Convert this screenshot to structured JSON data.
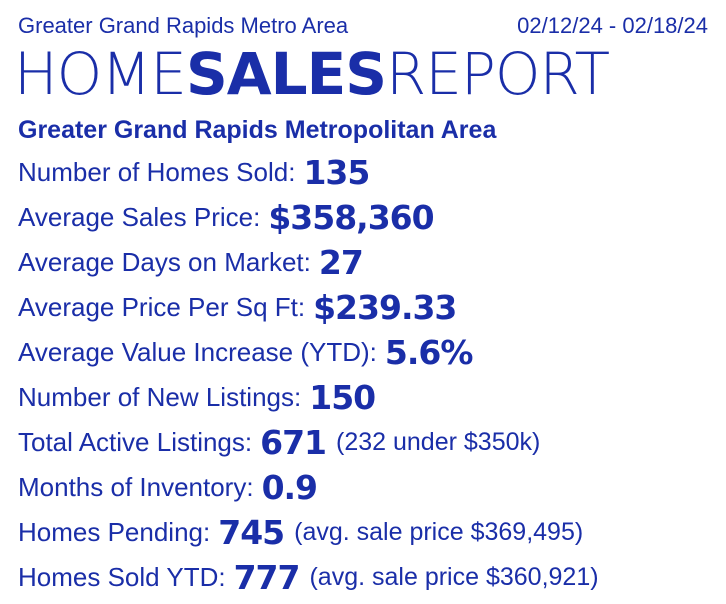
{
  "header": {
    "region": "Greater Grand Rapids Metro Area",
    "date_range": "02/12/24 - 02/18/24",
    "title_part1": "HOME",
    "title_part2": "SALES",
    "title_part3": "REPORT"
  },
  "area_heading": "Greater Grand Rapids Metropolitan Area",
  "stats": [
    {
      "label": "Number of Homes Sold:",
      "value": "135",
      "note": ""
    },
    {
      "label": "Average Sales Price:",
      "value": "$358,360",
      "note": ""
    },
    {
      "label": "Average Days on Market:",
      "value": "27",
      "note": ""
    },
    {
      "label": "Average Price Per Sq Ft:",
      "value": "$239.33",
      "note": ""
    },
    {
      "label": "Average Value Increase (YTD):",
      "value": "5.6%",
      "note": ""
    },
    {
      "label": "Number of New Listings:",
      "value": "150",
      "note": ""
    },
    {
      "label": "Total Active Listings:",
      "value": "671",
      "note": "(232 under $350k)"
    },
    {
      "label": "Months of Inventory:",
      "value": "0.9",
      "note": ""
    },
    {
      "label": "Homes Pending:",
      "value": "745",
      "note": "(avg. sale price $369,495)"
    },
    {
      "label": "Homes Sold YTD:",
      "value": "777",
      "note": "(avg. sale price $360,921)"
    }
  ],
  "colors": {
    "text": "#1a2ea8",
    "background": "#ffffff"
  }
}
